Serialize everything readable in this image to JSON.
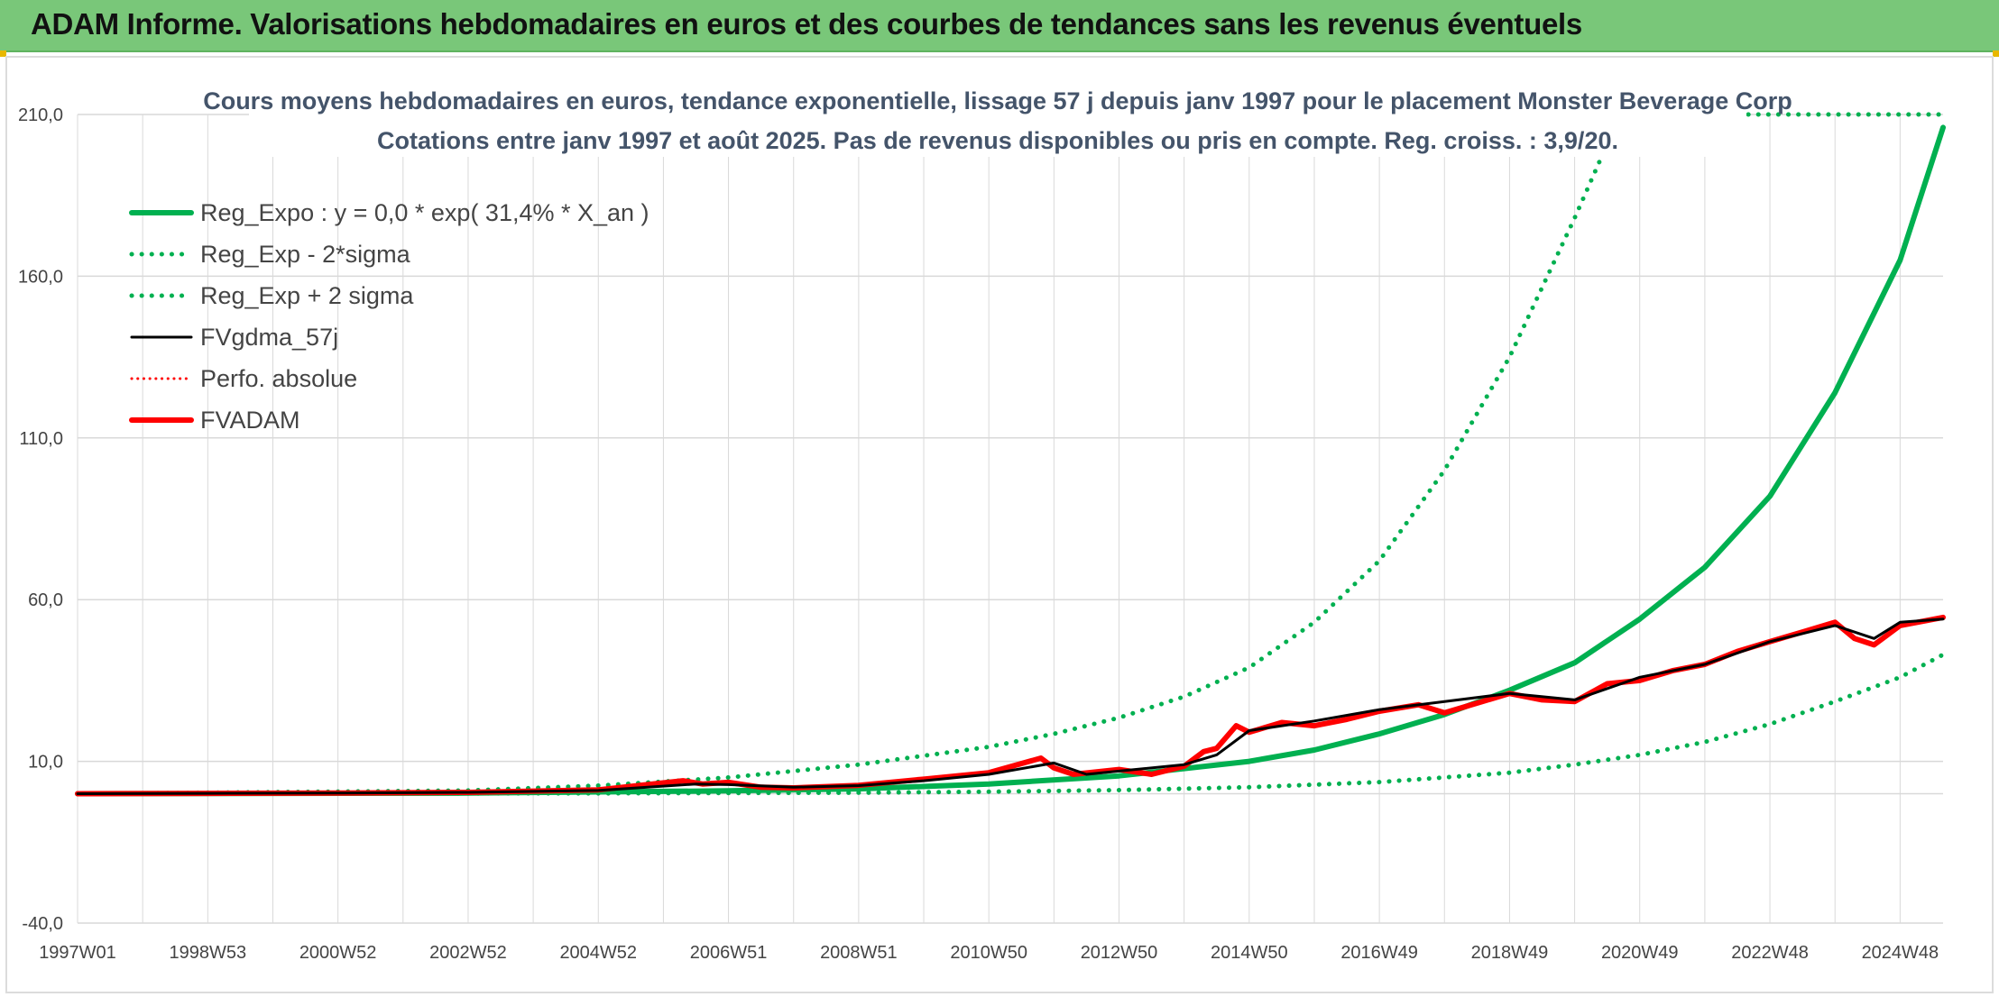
{
  "header": {
    "title": "ADAM Informe. Valorisations hebdomadaires en euros et des courbes de tendances sans les revenus éventuels"
  },
  "colors": {
    "banner": "#79c779",
    "green": "#00b050",
    "red": "#ff0000",
    "black": "#000000",
    "grid": "#d9d9d9",
    "axis_text": "#444444",
    "title_text": "#44546a"
  },
  "chart_data": {
    "type": "line",
    "title": "Cours moyens hebdomadaires en euros, tendance exponentielle, lissage 57 j depuis janv 1997 pour le placement Monster Beverage Corp",
    "subtitle": "Cotations entre janv 1997 et août 2025. Pas de revenus disponibles ou pris en compte. Reg. croiss. : 3,9/20.",
    "xlabel": "",
    "ylabel": "",
    "ylim": [
      -40,
      210
    ],
    "yticks": [
      "210,0",
      "160,0",
      "110,0",
      "60,0",
      "10,0",
      "-40,0"
    ],
    "ytick_values": [
      210,
      160,
      110,
      60,
      10,
      -40
    ],
    "xlim": [
      1997.0,
      2025.66
    ],
    "xticks": [
      "1997W01",
      "1998W53",
      "2000W52",
      "2002W52",
      "2004W52",
      "2006W51",
      "2008W51",
      "2010W50",
      "2012W50",
      "2014W50",
      "2016W49",
      "2018W49",
      "2020W49",
      "2022W48",
      "2024W48"
    ],
    "xtick_values": [
      1997.0,
      1999.0,
      2001.0,
      2003.0,
      2005.0,
      2007.0,
      2009.0,
      2011.0,
      2013.0,
      2015.0,
      2017.0,
      2019.0,
      2021.0,
      2023.0,
      2025.0
    ],
    "grid": true,
    "legend_position": "top-left",
    "series": [
      {
        "name": "Reg_Expo : y = 0,0 * exp( 31,4% *  X_an )",
        "style": "solid",
        "color": "#00b050",
        "width": 6,
        "x": [
          1997.0,
          2003.0,
          2007.0,
          2009.0,
          2011.0,
          2013.0,
          2015.0,
          2016.0,
          2017.0,
          2018.0,
          2019.0,
          2020.0,
          2021.0,
          2022.0,
          2023.0,
          2024.0,
          2025.0,
          2025.66
        ],
        "y": [
          0.0,
          0.2,
          0.9,
          1.5,
          3.0,
          5.5,
          10.0,
          13.5,
          18.5,
          24.5,
          32.0,
          40.5,
          54.0,
          70.0,
          92.0,
          124.0,
          165.0,
          206.0
        ]
      },
      {
        "name": "Reg_Exp - 2*sigma",
        "style": "dotted",
        "color": "#00b050",
        "width": 5,
        "x": [
          1997.0,
          2005.0,
          2009.0,
          2011.0,
          2013.0,
          2015.0,
          2017.0,
          2019.0,
          2020.0,
          2021.0,
          2022.0,
          2023.0,
          2024.0,
          2025.0,
          2025.66
        ],
        "y": [
          0.0,
          0.1,
          0.3,
          0.6,
          1.1,
          2.0,
          3.6,
          6.5,
          9.0,
          12.0,
          16.0,
          21.5,
          28.5,
          36.0,
          43.0
        ]
      },
      {
        "name": "Reg_Exp + 2 sigma",
        "style": "dotted",
        "color": "#00b050",
        "width": 5,
        "x": [
          1997.0,
          2003.0,
          2005.0,
          2007.0,
          2009.0,
          2011.0,
          2012.0,
          2013.0,
          2014.0,
          2015.0,
          2016.0,
          2017.0,
          2018.0,
          2019.0,
          2020.0,
          2020.7,
          2021.0,
          2025.66
        ],
        "y": [
          0.0,
          1.0,
          2.5,
          5.0,
          9.0,
          14.5,
          18.5,
          23.5,
          30.0,
          39.0,
          53.0,
          72.0,
          100.0,
          135.0,
          178.0,
          210.0,
          210.0,
          210.0
        ]
      },
      {
        "name": "FVgdma_57j",
        "style": "solid",
        "color": "#000000",
        "width": 3,
        "x": [
          1997.0,
          1999.0,
          2001.0,
          2003.0,
          2005.0,
          2006.5,
          2007.0,
          2008.0,
          2009.0,
          2010.0,
          2011.0,
          2012.0,
          2012.5,
          2013.0,
          2014.0,
          2014.5,
          2015.0,
          2016.0,
          2017.0,
          2018.0,
          2019.0,
          2020.0,
          2021.0,
          2022.0,
          2023.0,
          2024.0,
          2024.6,
          2025.0,
          2025.66
        ],
        "y": [
          0.0,
          0.1,
          0.2,
          0.4,
          1.0,
          3.0,
          2.8,
          2.0,
          2.5,
          4.0,
          6.0,
          9.5,
          6.0,
          7.0,
          9.0,
          12.0,
          19.5,
          22.5,
          26.0,
          28.5,
          31.0,
          29.0,
          36.0,
          40.0,
          47.0,
          52.0,
          48.0,
          53.0,
          54.0
        ]
      },
      {
        "name": "Perfo. absolue",
        "style": "dotted",
        "color": "#ff0000",
        "width": 3,
        "x": [],
        "y": []
      },
      {
        "name": "FVADAM",
        "style": "solid",
        "color": "#ff0000",
        "width": 6,
        "x": [
          1997.0,
          1999.0,
          2001.0,
          2003.0,
          2005.0,
          2006.3,
          2006.6,
          2007.0,
          2007.5,
          2008.0,
          2009.0,
          2010.0,
          2011.0,
          2011.8,
          2012.0,
          2012.3,
          2013.0,
          2013.5,
          2014.0,
          2014.3,
          2014.5,
          2014.8,
          2015.0,
          2015.5,
          2016.0,
          2016.5,
          2017.0,
          2017.6,
          2018.0,
          2018.5,
          2019.0,
          2019.5,
          2020.0,
          2020.5,
          2021.0,
          2021.5,
          2022.0,
          2022.5,
          2023.0,
          2023.5,
          2024.0,
          2024.3,
          2024.6,
          2025.0,
          2025.66
        ],
        "y": [
          0.0,
          0.1,
          0.2,
          0.4,
          1.2,
          4.0,
          3.0,
          3.5,
          2.0,
          1.8,
          2.6,
          4.5,
          6.5,
          11.0,
          8.0,
          6.0,
          7.5,
          6.0,
          8.5,
          13.0,
          14.0,
          21.0,
          19.0,
          22.0,
          21.0,
          23.0,
          25.5,
          27.5,
          25.0,
          28.0,
          31.0,
          29.0,
          28.5,
          34.0,
          35.0,
          38.0,
          40.0,
          44.0,
          47.0,
          50.0,
          53.0,
          48.0,
          46.0,
          52.0,
          54.5
        ]
      }
    ]
  }
}
